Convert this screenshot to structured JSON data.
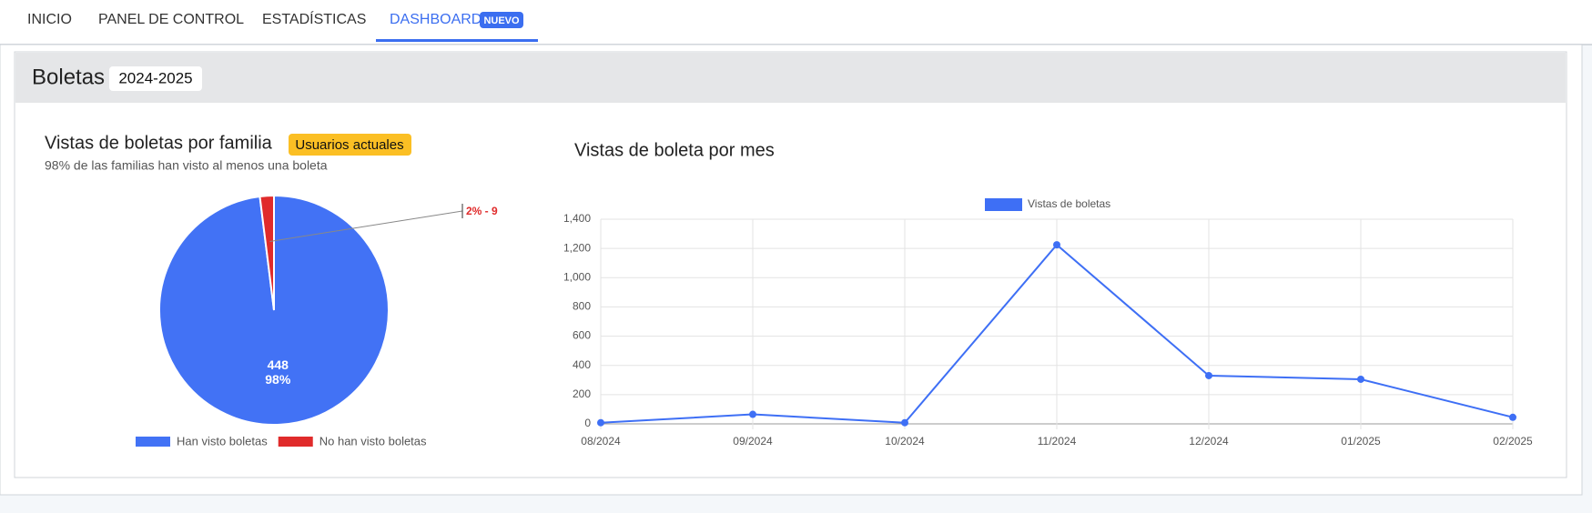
{
  "nav": {
    "items": [
      "INICIO",
      "PANEL DE CONTROL",
      "ESTADÍSTICAS",
      "DASHBOARD"
    ],
    "badge": "NUEVO"
  },
  "card": {
    "title": "Boletas",
    "badge": "2024-2025"
  },
  "chart_data": [
    {
      "type": "pie",
      "title": "Vistas de boletas por familia",
      "badge": "Usuarios actuales",
      "subtitle": "98% de las familias han visto al menos una boleta",
      "categories": [
        "Han visto boletas",
        "No han visto boletas"
      ],
      "values": [
        448,
        9
      ],
      "value_labels": [
        [
          "448",
          "98%"
        ],
        [
          "2% - 9"
        ]
      ],
      "colors": [
        "#4272f5",
        "#e02b2b"
      ]
    },
    {
      "type": "line",
      "title": "Vistas de boleta por mes",
      "categories": [
        "08/2024",
        "09/2024",
        "10/2024",
        "11/2024",
        "12/2024",
        "01/2025",
        "02/2025"
      ],
      "series": [
        {
          "name": "Vistas de boletas",
          "color": "#3e6ff5",
          "values": [
            8,
            65,
            8,
            1225,
            330,
            305,
            45
          ]
        }
      ],
      "ylim": [
        0,
        1400
      ],
      "yticks": [
        0,
        200,
        400,
        600,
        800,
        {
          "value": 1000,
          "label": "1,000"
        },
        {
          "value": 1200,
          "label": "1,200"
        },
        {
          "value": 1400,
          "label": "1,400"
        }
      ],
      "grid": true
    }
  ]
}
